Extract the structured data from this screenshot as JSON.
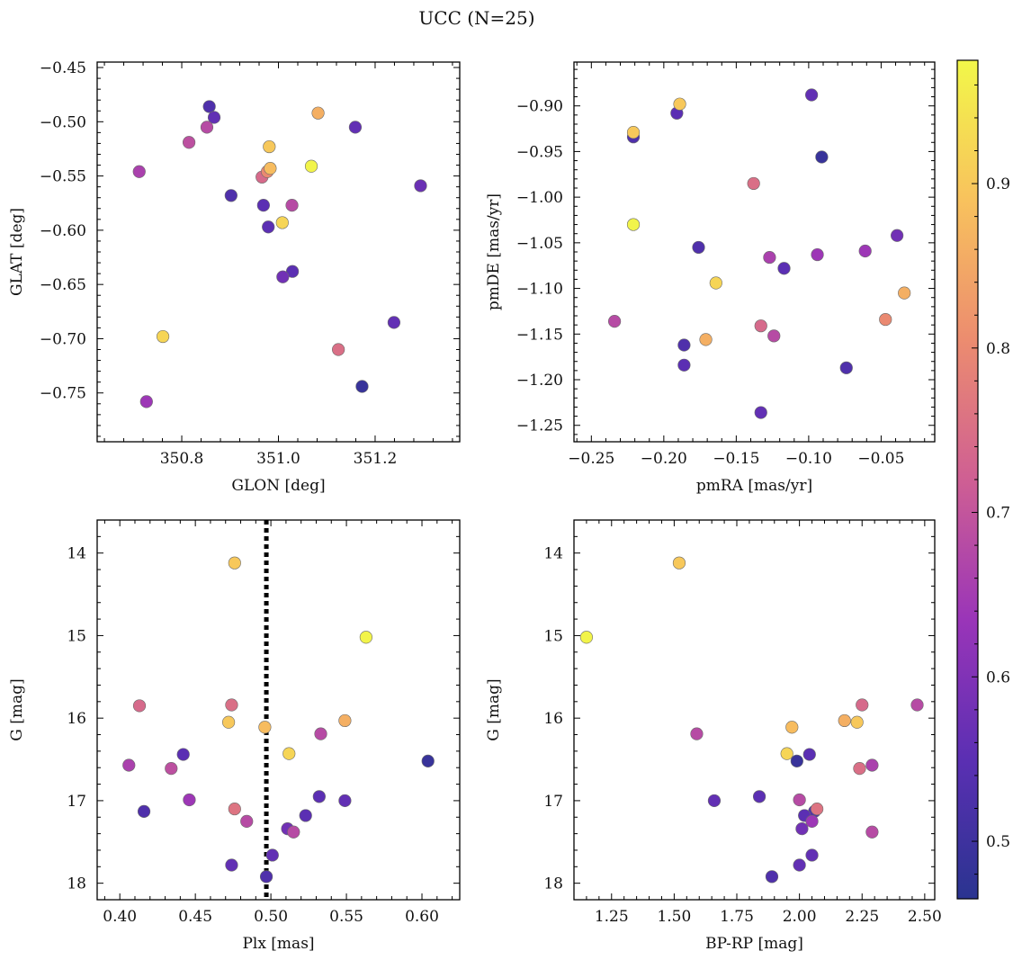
{
  "figure": {
    "title": "UCC (N=25)"
  },
  "colorbar": {
    "range": [
      0.465,
      0.975
    ],
    "ticks": [
      0.5,
      0.6,
      0.7,
      0.8,
      0.9
    ],
    "tick_labels": [
      "0.5",
      "0.6",
      "0.7",
      "0.8",
      "0.9"
    ],
    "colormap": "plasma",
    "stops": [
      "#2a3490",
      "#5b2fb3",
      "#9a35b8",
      "#cf5f93",
      "#ec8c6f",
      "#f8c25d",
      "#f2f749"
    ]
  },
  "chart_data": [
    {
      "type": "scatter",
      "xlabel": "GLON [deg]",
      "ylabel": "GLAT [deg]",
      "xlim": [
        350.625,
        351.375
      ],
      "ylim": [
        -0.795,
        -0.445
      ],
      "y_inverted": false,
      "xticks": [
        350.8,
        351.0,
        351.2
      ],
      "xtick_labels": [
        "350.8",
        "351.0",
        "351.2"
      ],
      "yticks": [
        -0.45,
        -0.5,
        -0.55,
        -0.6,
        -0.65,
        -0.7,
        -0.75
      ],
      "ytick_labels": [
        "−0.45",
        "−0.50",
        "−0.55",
        "−0.60",
        "−0.65",
        "−0.70",
        "−0.75"
      ],
      "x": [
        350.857,
        350.867,
        350.852,
        350.815,
        350.712,
        350.981,
        350.983,
        350.977,
        350.966,
        351.068,
        351.082,
        351.159,
        351.294,
        350.902,
        350.969,
        351.028,
        351.008,
        350.979,
        351.029,
        351.009,
        351.239,
        351.124,
        350.761,
        350.727,
        351.173
      ],
      "y": [
        -0.486,
        -0.496,
        -0.505,
        -0.519,
        -0.546,
        -0.523,
        -0.543,
        -0.546,
        -0.551,
        -0.541,
        -0.492,
        -0.505,
        -0.559,
        -0.568,
        -0.577,
        -0.577,
        -0.593,
        -0.597,
        -0.638,
        -0.643,
        -0.685,
        -0.71,
        -0.698,
        -0.758,
        -0.744
      ],
      "c": [
        0.53,
        0.56,
        0.68,
        0.69,
        0.66,
        0.9,
        0.88,
        0.8,
        0.74,
        0.97,
        0.86,
        0.56,
        0.57,
        0.53,
        0.55,
        0.68,
        0.92,
        0.55,
        0.55,
        0.58,
        0.56,
        0.75,
        0.92,
        0.64,
        0.49
      ]
    },
    {
      "type": "scatter",
      "xlabel": "pmRA [mas/yr]",
      "ylabel": "pmDE [mas/yr]",
      "xlim": [
        -0.262,
        -0.013
      ],
      "ylim": [
        -1.268,
        -0.852
      ],
      "y_inverted": false,
      "xticks": [
        -0.25,
        -0.2,
        -0.15,
        -0.1,
        -0.05
      ],
      "xtick_labels": [
        "−0.25",
        "−0.20",
        "−0.15",
        "−0.10",
        "−0.05"
      ],
      "yticks": [
        -0.9,
        -0.95,
        -1.0,
        -1.05,
        -1.1,
        -1.15,
        -1.2,
        -1.25
      ],
      "ytick_labels": [
        "−0.90",
        "−0.95",
        "−1.00",
        "−1.05",
        "−1.10",
        "−1.15",
        "−1.20",
        "−1.25"
      ],
      "x": [
        -0.189,
        -0.191,
        -0.098,
        -0.221,
        -0.221,
        -0.091,
        -0.138,
        -0.221,
        -0.176,
        -0.127,
        -0.117,
        -0.094,
        -0.061,
        -0.039,
        -0.164,
        -0.034,
        -0.234,
        -0.133,
        -0.047,
        -0.171,
        -0.124,
        -0.186,
        -0.186,
        -0.074,
        -0.133
      ],
      "y": [
        -0.898,
        -0.908,
        -0.888,
        -0.929,
        -0.934,
        -0.956,
        -0.985,
        -1.03,
        -1.055,
        -1.066,
        -1.078,
        -1.063,
        -1.059,
        -1.042,
        -1.094,
        -1.105,
        -1.136,
        -1.141,
        -1.134,
        -1.156,
        -1.152,
        -1.162,
        -1.184,
        -1.187,
        -1.236
      ],
      "c": [
        0.9,
        0.55,
        0.56,
        0.9,
        0.53,
        0.49,
        0.75,
        0.97,
        0.53,
        0.66,
        0.55,
        0.64,
        0.64,
        0.58,
        0.92,
        0.86,
        0.68,
        0.74,
        0.8,
        0.86,
        0.68,
        0.53,
        0.55,
        0.53,
        0.56
      ]
    },
    {
      "type": "scatter",
      "xlabel": "Plx [mas]",
      "ylabel": "G [mag]",
      "xlim": [
        0.385,
        0.625
      ],
      "ylim": [
        18.2,
        13.6
      ],
      "y_inverted": true,
      "xticks": [
        0.4,
        0.45,
        0.5,
        0.55,
        0.6
      ],
      "xtick_labels": [
        "0.40",
        "0.45",
        "0.50",
        "0.55",
        "0.60"
      ],
      "yticks": [
        14,
        15,
        16,
        17,
        18
      ],
      "ytick_labels": [
        "14",
        "15",
        "16",
        "17",
        "18"
      ],
      "vline": {
        "x": 0.497,
        "style": "dotted",
        "color": "#000000"
      },
      "x": [
        0.476,
        0.563,
        0.413,
        0.474,
        0.472,
        0.496,
        0.549,
        0.533,
        0.512,
        0.442,
        0.604,
        0.406,
        0.434,
        0.446,
        0.532,
        0.549,
        0.416,
        0.476,
        0.484,
        0.523,
        0.511,
        0.515,
        0.501,
        0.474,
        0.497
      ],
      "y": [
        14.12,
        15.02,
        15.85,
        15.84,
        16.05,
        16.11,
        16.03,
        16.19,
        16.43,
        16.44,
        16.52,
        16.57,
        16.61,
        16.99,
        16.95,
        17.0,
        17.13,
        17.1,
        17.25,
        17.18,
        17.34,
        17.38,
        17.66,
        17.78,
        17.92
      ],
      "c": [
        0.9,
        0.97,
        0.74,
        0.75,
        0.9,
        0.88,
        0.86,
        0.68,
        0.92,
        0.55,
        0.49,
        0.66,
        0.69,
        0.64,
        0.55,
        0.56,
        0.53,
        0.76,
        0.68,
        0.55,
        0.58,
        0.68,
        0.56,
        0.56,
        0.53
      ]
    },
    {
      "type": "scatter",
      "xlabel": "BP-RP [mag]",
      "ylabel": "G [mag]",
      "xlim": [
        1.1,
        2.54
      ],
      "ylim": [
        18.2,
        13.6
      ],
      "y_inverted": true,
      "xticks": [
        1.25,
        1.5,
        1.75,
        2.0,
        2.25,
        2.5
      ],
      "xtick_labels": [
        "1.25",
        "1.50",
        "1.75",
        "2.00",
        "2.25",
        "2.50"
      ],
      "yticks": [
        14,
        15,
        16,
        17,
        18
      ],
      "ytick_labels": [
        "14",
        "15",
        "16",
        "17",
        "18"
      ],
      "x": [
        1.52,
        1.15,
        2.25,
        2.47,
        2.18,
        2.23,
        1.97,
        1.59,
        1.95,
        2.04,
        1.99,
        2.24,
        2.29,
        1.66,
        1.84,
        2.0,
        2.06,
        2.07,
        2.02,
        2.05,
        2.01,
        2.29,
        2.05,
        2.0,
        1.89
      ],
      "y": [
        14.12,
        15.02,
        15.84,
        15.84,
        16.03,
        16.05,
        16.11,
        16.19,
        16.43,
        16.44,
        16.52,
        16.61,
        16.57,
        17.0,
        16.95,
        16.99,
        17.13,
        17.1,
        17.18,
        17.25,
        17.34,
        17.38,
        17.66,
        17.78,
        17.92
      ],
      "c": [
        0.9,
        0.97,
        0.74,
        0.68,
        0.86,
        0.9,
        0.88,
        0.68,
        0.92,
        0.55,
        0.49,
        0.75,
        0.66,
        0.56,
        0.55,
        0.68,
        0.53,
        0.76,
        0.55,
        0.64,
        0.58,
        0.68,
        0.56,
        0.56,
        0.53
      ]
    }
  ]
}
